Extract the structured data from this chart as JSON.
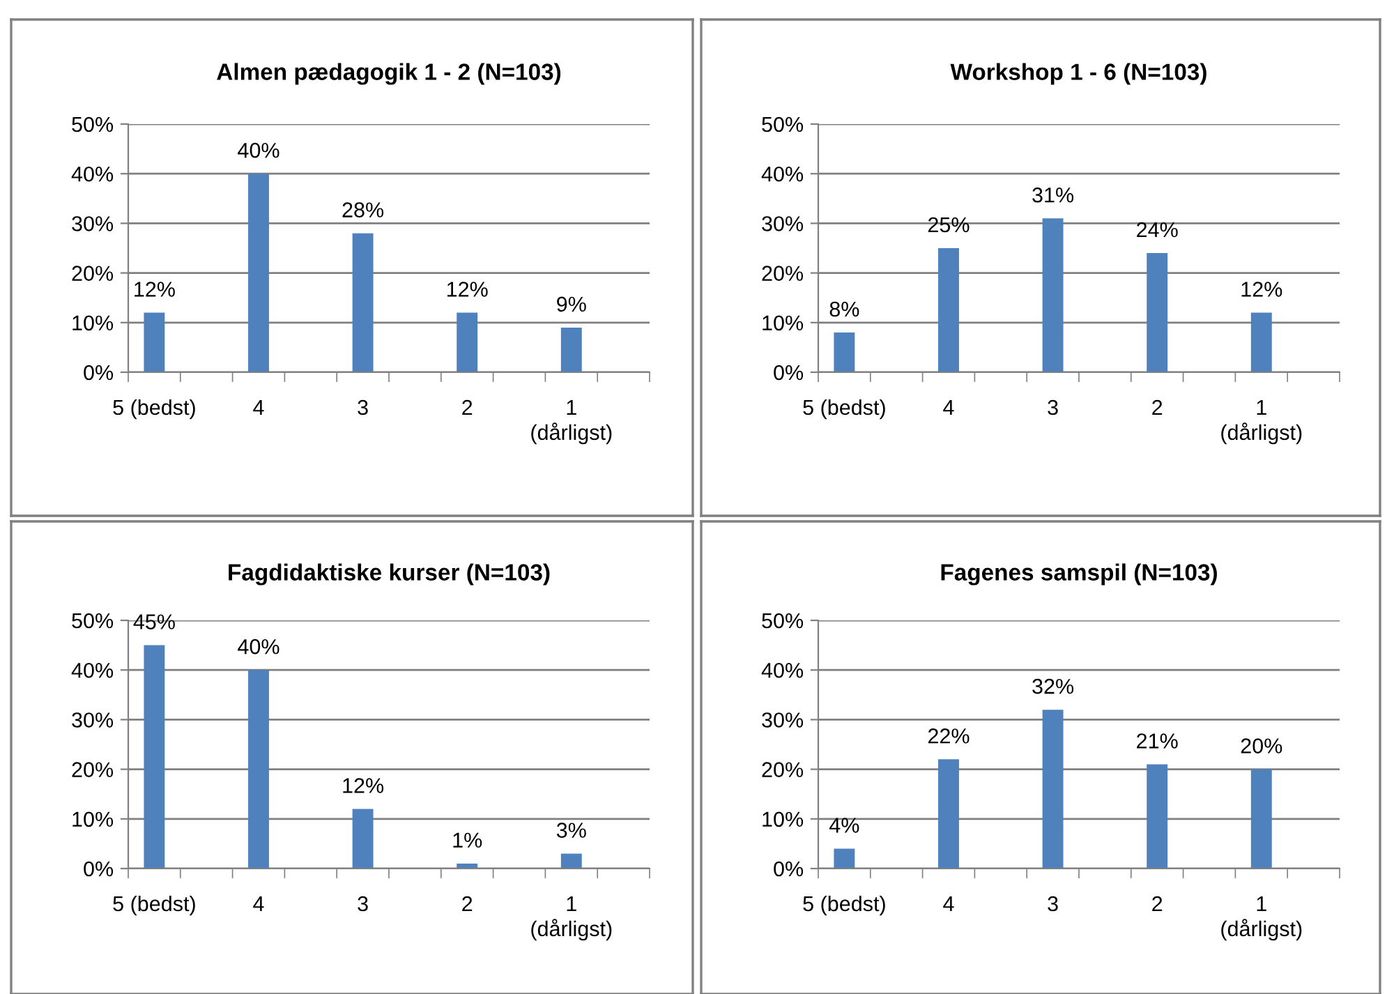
{
  "chart_data": [
    {
      "type": "bar",
      "title": "Almen pædagogik 1 - 2 (N=103)",
      "categories": [
        "5 (bedst)",
        "4",
        "3",
        "2",
        "1\n(dårligst)"
      ],
      "values": [
        12,
        40,
        28,
        12,
        9
      ],
      "value_labels": [
        "12%",
        "40%",
        "28%",
        "12%",
        "9%"
      ],
      "color": "#4f81bd",
      "ylim": [
        0,
        50
      ],
      "yticks": [
        {
          "value": 0,
          "label": "0%"
        },
        {
          "value": 10,
          "label": "10%"
        },
        {
          "value": 20,
          "label": "20%"
        },
        {
          "value": 30,
          "label": "30%"
        },
        {
          "value": 40,
          "label": "40%"
        },
        {
          "value": 50,
          "label": "50%"
        }
      ],
      "grid": "y",
      "legend": false
    },
    {
      "type": "bar",
      "title": "Workshop 1 - 6 (N=103)",
      "categories": [
        "5 (bedst)",
        "4",
        "3",
        "2",
        "1\n(dårligst)"
      ],
      "values": [
        8,
        25,
        31,
        24,
        12
      ],
      "value_labels": [
        "8%",
        "25%",
        "31%",
        "24%",
        "12%"
      ],
      "color": "#4f81bd",
      "ylim": [
        0,
        50
      ],
      "yticks": [
        {
          "value": 0,
          "label": "0%"
        },
        {
          "value": 10,
          "label": "10%"
        },
        {
          "value": 20,
          "label": "20%"
        },
        {
          "value": 30,
          "label": "30%"
        },
        {
          "value": 40,
          "label": "40%"
        },
        {
          "value": 50,
          "label": "50%"
        }
      ],
      "grid": "y",
      "legend": false
    },
    {
      "type": "bar",
      "title": "Fagdidaktiske kurser (N=103)",
      "categories": [
        "5 (bedst)",
        "4",
        "3",
        "2",
        "1\n(dårligst)"
      ],
      "values": [
        45,
        40,
        12,
        1,
        3
      ],
      "value_labels": [
        "45%",
        "40%",
        "12%",
        "1%",
        "3%"
      ],
      "color": "#4f81bd",
      "ylim": [
        0,
        50
      ],
      "yticks": [
        {
          "value": 0,
          "label": "0%"
        },
        {
          "value": 10,
          "label": "10%"
        },
        {
          "value": 20,
          "label": "20%"
        },
        {
          "value": 30,
          "label": "30%"
        },
        {
          "value": 40,
          "label": "40%"
        },
        {
          "value": 50,
          "label": "50%"
        }
      ],
      "grid": "y",
      "legend": false
    },
    {
      "type": "bar",
      "title": "Fagenes samspil (N=103)",
      "categories": [
        "5 (bedst)",
        "4",
        "3",
        "2",
        "1\n(dårligst)"
      ],
      "values": [
        4,
        22,
        32,
        21,
        20
      ],
      "value_labels": [
        "4%",
        "22%",
        "32%",
        "21%",
        "20%"
      ],
      "color": "#4f81bd",
      "ylim": [
        0,
        50
      ],
      "yticks": [
        {
          "value": 0,
          "label": "0%"
        },
        {
          "value": 10,
          "label": "10%"
        },
        {
          "value": 20,
          "label": "20%"
        },
        {
          "value": 30,
          "label": "30%"
        },
        {
          "value": 40,
          "label": "40%"
        },
        {
          "value": 50,
          "label": "50%"
        }
      ],
      "grid": "y",
      "legend": false
    }
  ]
}
